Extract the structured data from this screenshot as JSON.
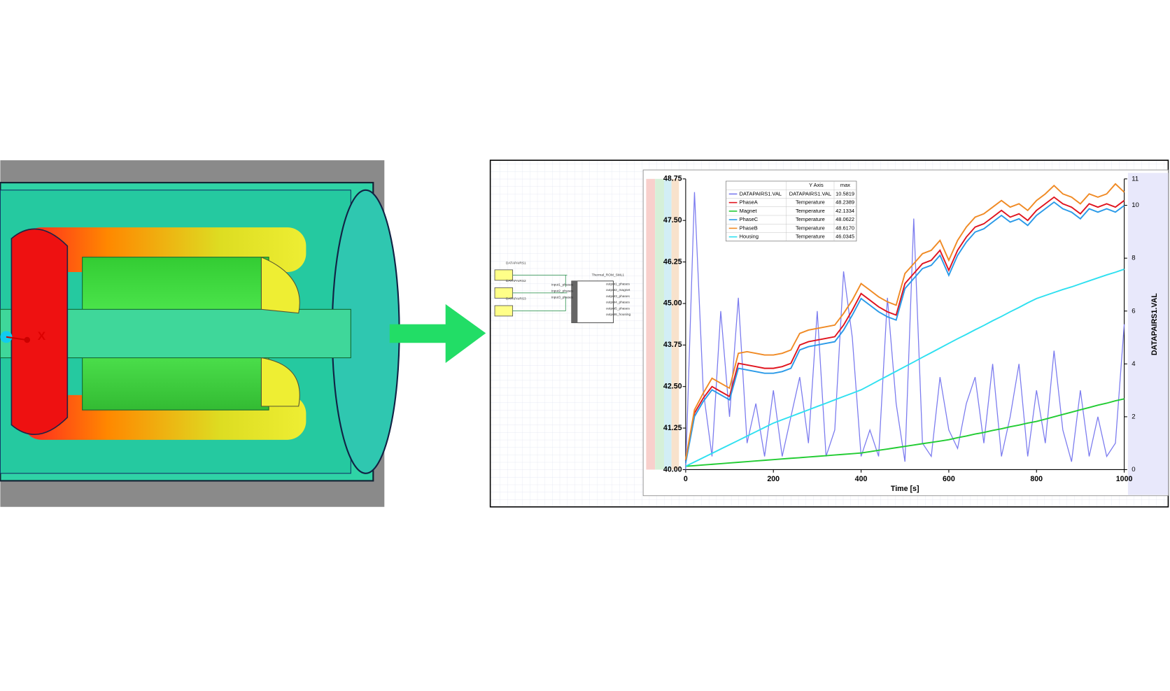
{
  "schematic": {
    "sources": [
      "DATAPAIRS1",
      "DATAPAIRS2",
      "DATAPAIRS3"
    ],
    "rom": "Thermal_ROM_SML1",
    "inputs": [
      "input1_phases",
      "input2_phases",
      "input3_phases"
    ],
    "outputs": [
      "output1_phases",
      "output2_magnet",
      "output3_phases",
      "output4_phases",
      "output5_phases",
      "output6_housing"
    ]
  },
  "chart_data": {
    "type": "line",
    "x_label": "Time [s]",
    "y2_label": "DATAPAIRS1.VAL",
    "legend_header": [
      "Y Axis",
      "max"
    ],
    "x": [
      0,
      20,
      40,
      60,
      80,
      100,
      120,
      140,
      160,
      180,
      200,
      220,
      240,
      260,
      280,
      300,
      320,
      340,
      360,
      380,
      400,
      420,
      440,
      460,
      480,
      500,
      520,
      540,
      560,
      580,
      600,
      620,
      640,
      660,
      680,
      700,
      720,
      740,
      760,
      780,
      800,
      820,
      840,
      860,
      880,
      900,
      920,
      940,
      960,
      980,
      1000
    ],
    "xlim": [
      0,
      1000
    ],
    "xticks": [
      0,
      200,
      400,
      600,
      800,
      1000
    ],
    "ylim": [
      40,
      48.75
    ],
    "yticks": [
      {
        "value": 40,
        "label": "40.00"
      },
      {
        "value": 41.25,
        "label": "41.25"
      },
      {
        "value": 42.5,
        "label": "42.50"
      },
      {
        "value": 43.75,
        "label": "43.75"
      },
      {
        "value": 45,
        "label": "45.00"
      },
      {
        "value": 46.25,
        "label": "46.25"
      },
      {
        "value": 47.5,
        "label": "47.50"
      },
      {
        "value": 48.75,
        "label": "48.75"
      }
    ],
    "y2lim": [
      0,
      11
    ],
    "y2ticks": [
      0,
      2,
      4,
      6,
      8,
      10,
      11
    ],
    "grid": false,
    "series": [
      {
        "name": "DATAPAIRS1.VAL",
        "color": "#7b7bef",
        "axis": "y2",
        "y_axis_name": "DATAPAIRS1.VAL",
        "max_label": "10.5819",
        "values": [
          0,
          10.5,
          3,
          0.5,
          6,
          2,
          6.5,
          1,
          2.5,
          0.5,
          3,
          0.5,
          2,
          3.5,
          1,
          6,
          0.5,
          1.5,
          7.5,
          5,
          0.5,
          1.5,
          0.5,
          6.5,
          2.5,
          0.3,
          9.5,
          1,
          0.5,
          3.5,
          1.5,
          0.8,
          2.5,
          3.5,
          1,
          4,
          0.5,
          2,
          4,
          0.5,
          3,
          1,
          4.5,
          1.5,
          0.3,
          3,
          0.5,
          2,
          0.5,
          1,
          5.5
        ]
      },
      {
        "name": "PhaseA",
        "color": "#e0141e",
        "y_axis_name": "Temperature",
        "max_label": "48.2389",
        "values": [
          40.25,
          41.7,
          42.15,
          42.5,
          42.35,
          42.2,
          43.2,
          43.15,
          43.1,
          43.05,
          43.05,
          43.1,
          43.2,
          43.75,
          43.85,
          43.9,
          43.95,
          44.0,
          44.35,
          44.8,
          45.3,
          45.1,
          44.9,
          44.75,
          44.65,
          45.6,
          45.9,
          46.2,
          46.3,
          46.6,
          46.0,
          46.6,
          47.0,
          47.3,
          47.4,
          47.6,
          47.8,
          47.6,
          47.7,
          47.5,
          47.8,
          48.0,
          48.2,
          48.0,
          47.9,
          47.7,
          48.0,
          47.9,
          48.0,
          47.9,
          48.1
        ]
      },
      {
        "name": "Magnet",
        "color": "#22cc33",
        "y_axis_name": "Temperature",
        "max_label": "42.1334",
        "values": [
          40.1,
          40.12,
          40.14,
          40.16,
          40.18,
          40.2,
          40.22,
          40.24,
          40.26,
          40.28,
          40.3,
          40.32,
          40.34,
          40.36,
          40.38,
          40.4,
          40.42,
          40.44,
          40.46,
          40.48,
          40.5,
          40.54,
          40.58,
          40.62,
          40.66,
          40.7,
          40.74,
          40.78,
          40.82,
          40.86,
          40.9,
          40.96,
          41.01,
          41.07,
          41.12,
          41.18,
          41.23,
          41.29,
          41.34,
          41.4,
          41.45,
          41.52,
          41.59,
          41.66,
          41.73,
          41.8,
          41.87,
          41.94,
          42.0,
          42.07,
          42.13
        ]
      },
      {
        "name": "PhaseC",
        "color": "#2a9ae8",
        "y_axis_name": "Temperature",
        "max_label": "48.0622",
        "values": [
          40.2,
          41.6,
          42.05,
          42.4,
          42.25,
          42.1,
          43.05,
          43.0,
          42.95,
          42.9,
          42.9,
          42.95,
          43.05,
          43.6,
          43.7,
          43.75,
          43.8,
          43.85,
          44.2,
          44.65,
          45.15,
          44.95,
          44.75,
          44.6,
          44.5,
          45.45,
          45.75,
          46.05,
          46.15,
          46.45,
          45.85,
          46.45,
          46.85,
          47.15,
          47.25,
          47.45,
          47.65,
          47.45,
          47.55,
          47.35,
          47.65,
          47.85,
          48.05,
          47.85,
          47.75,
          47.55,
          47.85,
          47.75,
          47.85,
          47.75,
          47.95
        ]
      },
      {
        "name": "PhaseB",
        "color": "#f08a24",
        "y_axis_name": "Temperature",
        "max_label": "48.6170",
        "values": [
          40.3,
          41.8,
          42.3,
          42.75,
          42.6,
          42.45,
          43.5,
          43.55,
          43.5,
          43.45,
          43.45,
          43.5,
          43.6,
          44.1,
          44.2,
          44.25,
          44.3,
          44.35,
          44.7,
          45.1,
          45.6,
          45.4,
          45.2,
          45.05,
          44.95,
          45.9,
          46.2,
          46.5,
          46.6,
          46.9,
          46.3,
          46.9,
          47.3,
          47.6,
          47.7,
          47.9,
          48.1,
          47.9,
          48.0,
          47.8,
          48.1,
          48.3,
          48.55,
          48.3,
          48.2,
          48.0,
          48.3,
          48.2,
          48.3,
          48.6,
          48.35
        ]
      },
      {
        "name": "Housing",
        "color": "#2ee0f0",
        "y_axis_name": "Temperature",
        "max_label": "46.0345",
        "values": [
          40.1,
          40.23,
          40.36,
          40.49,
          40.62,
          40.75,
          40.88,
          41.01,
          41.14,
          41.27,
          41.4,
          41.5,
          41.6,
          41.7,
          41.8,
          41.9,
          42.0,
          42.1,
          42.2,
          42.3,
          42.4,
          42.54,
          42.68,
          42.82,
          42.96,
          43.1,
          43.24,
          43.38,
          43.52,
          43.66,
          43.8,
          43.94,
          44.07,
          44.21,
          44.34,
          44.48,
          44.61,
          44.75,
          44.88,
          45.02,
          45.15,
          45.24,
          45.33,
          45.42,
          45.5,
          45.59,
          45.68,
          45.77,
          45.86,
          45.94,
          46.03
        ]
      }
    ]
  }
}
